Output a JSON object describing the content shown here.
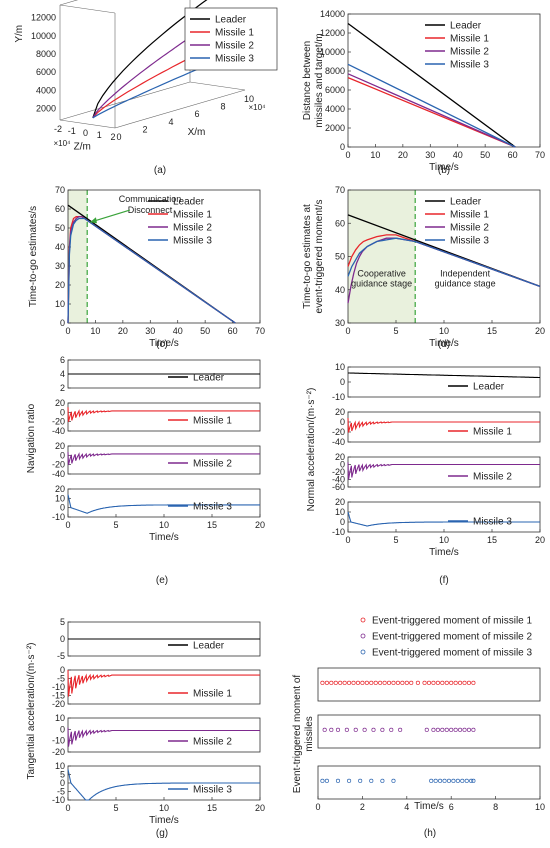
{
  "colors": {
    "leader": "#000000",
    "missile1": "#e8262b",
    "missile2": "#7e2a8e",
    "missile3": "#2a64b0",
    "stage_fill": "#e9f1dd",
    "stage_line": "#3aa33a"
  },
  "panel_labels": [
    "(a)",
    "(b)",
    "(c)",
    "(d)",
    "(e)",
    "(f)",
    "(g)",
    "(h)"
  ],
  "chart_data": [
    {
      "id": "a",
      "type": "line3d",
      "xlabel": "X/m",
      "ylabel": "Y/m",
      "zlabel": "Z/m",
      "x_scale": "×10⁴",
      "z_scale": "×10⁴",
      "x_ticks": [
        "0",
        "2",
        "4",
        "6",
        "8",
        "10"
      ],
      "y_ticks": [
        "2000",
        "4000",
        "6000",
        "8000",
        "10000",
        "12000"
      ],
      "z_ticks": [
        "-2",
        "-1",
        "0",
        "1",
        "2"
      ],
      "legend": [
        "Leader",
        "Missile 1",
        "Missile 2",
        "Missile 3"
      ],
      "legend_position": "top-right"
    },
    {
      "id": "b",
      "type": "line",
      "xlabel": "Time/s",
      "ylabel": "Distance between missiles and target/m",
      "xlim": [
        0,
        70
      ],
      "ylim": [
        0,
        14000
      ],
      "x_ticks": [
        "0",
        "10",
        "20",
        "30",
        "40",
        "50",
        "60",
        "70"
      ],
      "y_ticks": [
        "0",
        "2000",
        "4000",
        "6000",
        "8000",
        "10000",
        "12000",
        "14000"
      ],
      "legend_position": "top-right",
      "series": [
        {
          "name": "Leader",
          "x": [
            0,
            61
          ],
          "y": [
            13000,
            0
          ]
        },
        {
          "name": "Missile 1",
          "x": [
            0,
            61
          ],
          "y": [
            7300,
            0
          ]
        },
        {
          "name": "Missile 2",
          "x": [
            0,
            61
          ],
          "y": [
            7700,
            0
          ]
        },
        {
          "name": "Missile 3",
          "x": [
            0,
            61
          ],
          "y": [
            8700,
            0
          ]
        }
      ]
    },
    {
      "id": "c",
      "type": "line",
      "xlabel": "Time/s",
      "ylabel": "Time-to-go estimates/s",
      "xlim": [
        0,
        70
      ],
      "ylim": [
        0,
        70
      ],
      "x_ticks": [
        "0",
        "10",
        "20",
        "30",
        "40",
        "50",
        "60",
        "70"
      ],
      "y_ticks": [
        "0",
        "10",
        "20",
        "30",
        "40",
        "50",
        "60",
        "70"
      ],
      "shaded_until": 7,
      "annotation": "Communication Disconnect",
      "legend_position": "top-right",
      "series": [
        {
          "name": "Leader",
          "x": [
            0,
            61
          ],
          "y": [
            62,
            0
          ]
        },
        {
          "name": "Missile 1",
          "x": [
            0,
            0.5,
            1,
            2,
            3,
            4,
            5,
            6,
            7,
            61
          ],
          "y": [
            0,
            40,
            50,
            55,
            56,
            56,
            56,
            55,
            54,
            0
          ]
        },
        {
          "name": "Missile 2",
          "x": [
            0,
            0.5,
            1,
            2,
            3,
            4,
            5,
            6,
            7,
            61
          ],
          "y": [
            0,
            38,
            48,
            53,
            55,
            56,
            56,
            55,
            54,
            0
          ]
        },
        {
          "name": "Missile 3",
          "x": [
            0,
            0.5,
            1,
            2,
            3,
            4,
            5,
            6,
            7,
            61
          ],
          "y": [
            0,
            36,
            46,
            52,
            54,
            55,
            55,
            55,
            54,
            0
          ]
        }
      ]
    },
    {
      "id": "d",
      "type": "line",
      "xlabel": "Time/s",
      "ylabel": "Time-to-go estimates at event-triggered moment/s",
      "xlim": [
        0,
        20
      ],
      "ylim": [
        30,
        70
      ],
      "x_ticks": [
        "0",
        "5",
        "10",
        "15",
        "20"
      ],
      "y_ticks": [
        "30",
        "40",
        "50",
        "60",
        "70"
      ],
      "shaded_until": 7,
      "stage_labels": [
        "Cooperative guidance stage",
        "Independent guidance stage"
      ],
      "legend_position": "top-right",
      "series": [
        {
          "name": "Leader",
          "x": [
            0,
            20
          ],
          "y": [
            62.5,
            41
          ]
        },
        {
          "name": "Missile 1",
          "x": [
            0,
            0.4,
            0.8,
            1.2,
            1.6,
            2,
            3,
            4,
            5,
            6,
            7,
            20
          ],
          "y": [
            47,
            50,
            52,
            53.5,
            54.5,
            55,
            56,
            56.5,
            56.5,
            55.5,
            54.5,
            41
          ]
        },
        {
          "name": "Missile 2",
          "x": [
            0,
            0.3,
            0.6,
            0.9,
            1.2,
            1.5,
            2,
            3,
            4,
            5,
            6,
            7,
            20
          ],
          "y": [
            36,
            41,
            45,
            48,
            50,
            51.5,
            53,
            54.5,
            55.5,
            55.5,
            55,
            54.5,
            41
          ]
        },
        {
          "name": "Missile 3",
          "x": [
            0,
            0.4,
            0.8,
            1.2,
            1.6,
            2,
            3,
            4,
            5,
            6,
            7,
            20
          ],
          "y": [
            44,
            47,
            49,
            51,
            52,
            53,
            54.5,
            55,
            55.5,
            55,
            54.5,
            41
          ]
        }
      ]
    },
    {
      "id": "e",
      "type": "line",
      "stacked_subplots": true,
      "xlabel": "Time/s",
      "ylabel": "Navigation ratio",
      "xlim": [
        0,
        20
      ],
      "x_ticks": [
        "0",
        "5",
        "10",
        "15",
        "20"
      ],
      "subplots": [
        {
          "name": "Leader",
          "ylim": [
            2,
            6
          ],
          "y_ticks": [
            "2",
            "4",
            "6"
          ],
          "steady": 4,
          "start": 4,
          "amp": 0,
          "osc": false
        },
        {
          "name": "Missile 1",
          "ylim": [
            -40,
            20
          ],
          "y_ticks": [
            "-40",
            "-20",
            "0",
            "20"
          ],
          "steady": 3,
          "start": -25,
          "amp": 20,
          "osc": true
        },
        {
          "name": "Missile 2",
          "ylim": [
            -40,
            20
          ],
          "y_ticks": [
            "-40",
            "-20",
            "0",
            "20"
          ],
          "steady": 3,
          "start": -25,
          "amp": 10,
          "osc": true
        },
        {
          "name": "Missile 3",
          "ylim": [
            -10,
            20
          ],
          "y_ticks": [
            "-10",
            "0",
            "10",
            "20"
          ],
          "steady": 3,
          "start": 14,
          "amp": 0,
          "osc": false,
          "dip": -6
        }
      ]
    },
    {
      "id": "f",
      "type": "line",
      "stacked_subplots": true,
      "xlabel": "Time/s",
      "ylabel": "Normal acceleration/(m·s⁻²)",
      "xlim": [
        0,
        20
      ],
      "x_ticks": [
        "0",
        "5",
        "10",
        "15",
        "20"
      ],
      "subplots": [
        {
          "name": "Leader",
          "ylim": [
            -10,
            10
          ],
          "y_ticks": [
            "-10",
            "0",
            "10"
          ],
          "steady": 3,
          "start": 6,
          "amp": 0,
          "osc": false,
          "linear_end": 3
        },
        {
          "name": "Missile 1",
          "ylim": [
            -40,
            20
          ],
          "y_ticks": [
            "-40",
            "-20",
            "0",
            "20"
          ],
          "steady": 0,
          "start": -25,
          "amp": 20,
          "osc": true
        },
        {
          "name": "Missile 2",
          "ylim": [
            -60,
            20
          ],
          "y_ticks": [
            "-60",
            "-40",
            "-20",
            "0",
            "20"
          ],
          "steady": 0,
          "start": -48,
          "amp": 15,
          "osc": true
        },
        {
          "name": "Missile 3",
          "ylim": [
            -10,
            20
          ],
          "y_ticks": [
            "-10",
            "0",
            "10",
            "20"
          ],
          "steady": 0,
          "start": 10,
          "amp": 0,
          "osc": false,
          "dip": -4
        }
      ]
    },
    {
      "id": "g",
      "type": "line",
      "stacked_subplots": true,
      "xlabel": "Time/s",
      "ylabel": "Tangential acceleration/(m·s⁻²)",
      "xlim": [
        0,
        20
      ],
      "x_ticks": [
        "0",
        "5",
        "10",
        "15",
        "20"
      ],
      "subplots": [
        {
          "name": "Leader",
          "ylim": [
            -5,
            5
          ],
          "y_ticks": [
            "-5",
            "0",
            "5"
          ],
          "steady": 0,
          "start": 0,
          "amp": 0,
          "osc": false
        },
        {
          "name": "Missile 1",
          "ylim": [
            -20,
            0
          ],
          "y_ticks": [
            "-20",
            "-15",
            "-10",
            "-5",
            "0"
          ],
          "steady": -3,
          "start": -18,
          "amp": 12,
          "osc": true
        },
        {
          "name": "Missile 2",
          "ylim": [
            -20,
            10
          ],
          "y_ticks": [
            "-20",
            "-10",
            "0",
            "10"
          ],
          "steady": -1,
          "start": -18,
          "amp": 6,
          "osc": true
        },
        {
          "name": "Missile 3",
          "ylim": [
            -10,
            10
          ],
          "y_ticks": [
            "-10",
            "-5",
            "0",
            "5",
            "10"
          ],
          "steady": 0,
          "start": 8,
          "amp": 0,
          "osc": false,
          "dip": -11
        }
      ]
    },
    {
      "id": "h",
      "type": "scatter",
      "stacked_subplots": true,
      "xlabel": "Time/s",
      "ylabel": "Event-triggered moment of missiles",
      "xlim": [
        0,
        10
      ],
      "x_ticks": [
        "0",
        "2",
        "4",
        "6",
        "8",
        "10"
      ],
      "legend": [
        "Event-triggered moment of missile 1",
        "Event-triggered moment of missile 2",
        "Event-triggered moment of missile 3"
      ],
      "legend_position": "top",
      "series": [
        {
          "name": "missile 1",
          "x": [
            0.2,
            0.4,
            0.6,
            0.8,
            1.0,
            1.2,
            1.4,
            1.6,
            1.8,
            2.0,
            2.2,
            2.4,
            2.6,
            2.8,
            3.0,
            3.2,
            3.4,
            3.6,
            3.8,
            4.0,
            4.2,
            4.5,
            4.8,
            5.0,
            5.2,
            5.4,
            5.6,
            5.8,
            6.0,
            6.2,
            6.4,
            6.6,
            6.8,
            7.0
          ]
        },
        {
          "name": "missile 2",
          "x": [
            0.3,
            0.6,
            0.9,
            1.3,
            1.7,
            2.1,
            2.5,
            2.9,
            3.3,
            3.7,
            4.9,
            5.2,
            5.4,
            5.6,
            5.8,
            6.0,
            6.2,
            6.4,
            6.6,
            6.8,
            7.0
          ]
        },
        {
          "name": "missile 3",
          "x": [
            0.2,
            0.4,
            0.9,
            1.4,
            1.9,
            2.4,
            2.9,
            3.4,
            5.1,
            5.3,
            5.5,
            5.7,
            5.9,
            6.1,
            6.3,
            6.5,
            6.7,
            6.9,
            7.0
          ]
        }
      ]
    }
  ]
}
